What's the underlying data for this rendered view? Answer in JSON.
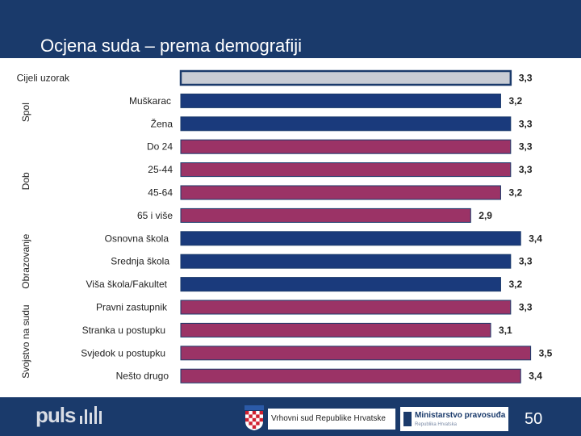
{
  "header": {
    "title": "Ocjena suda – prema demografiji"
  },
  "chart_data": {
    "type": "bar",
    "orientation": "horizontal",
    "title": "Ocjena suda – prema demografiji",
    "xlim": [
      0,
      3.6
    ],
    "categories": [
      "Cijeli uzorak",
      "Muškarac",
      "Žena",
      "Do 24",
      "25-44",
      "45-64",
      "65 i više",
      "Osnovna škola",
      "Srednja škola",
      "Viša škola/Fakultet",
      "Pravni zastupnik",
      "Stranka u postupku",
      "Svjedok u postupku",
      "Nešto drugo"
    ],
    "values": [
      3.3,
      3.2,
      3.3,
      3.3,
      3.3,
      3.2,
      2.9,
      3.4,
      3.3,
      3.2,
      3.3,
      3.1,
      3.5,
      3.4
    ],
    "value_labels": [
      "3,3",
      "3,2",
      "3,3",
      "3,3",
      "3,3",
      "3,2",
      "2,9",
      "3,4",
      "3,3",
      "3,2",
      "3,3",
      "3,1",
      "3,5",
      "3,4"
    ],
    "groups": [
      {
        "name": "",
        "start": 0,
        "end": 0,
        "color": "#c8ccd4"
      },
      {
        "name": "Spol",
        "start": 1,
        "end": 2,
        "color": "#1a3a7c"
      },
      {
        "name": "Dob",
        "start": 3,
        "end": 6,
        "color": "#9b3366"
      },
      {
        "name": "Obrazovanje",
        "start": 7,
        "end": 9,
        "color": "#1a3a7c"
      },
      {
        "name": "Svojstvo na sudu",
        "start": 10,
        "end": 13,
        "color": "#9b3366"
      }
    ]
  },
  "footer": {
    "court_name": "Vrhovni sud Republike Hrvatske",
    "ministry_name": "Ministarstvo pravosuđa",
    "ministry_sub": "Republika Hrvatska",
    "logo_text": "puls",
    "page_number": "50"
  },
  "colors": {
    "header_bg": "#1a3a6b",
    "blue_bar": "#1a3a7c",
    "maroon_bar": "#9b3366",
    "grey_bar": "#c8ccd4"
  }
}
